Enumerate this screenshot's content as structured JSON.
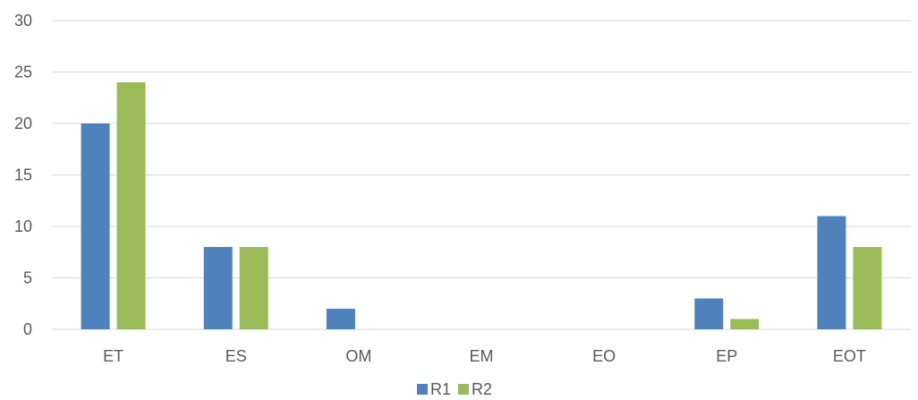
{
  "chart_data": {
    "type": "bar",
    "categories": [
      "ET",
      "ES",
      "OM",
      "EM",
      "EO",
      "EP",
      "EOT"
    ],
    "series": [
      {
        "name": "R1",
        "values": [
          20,
          8,
          2,
          0,
          0,
          3,
          11
        ],
        "color": "#4f81bd"
      },
      {
        "name": "R2",
        "values": [
          24,
          8,
          0,
          0,
          0,
          1,
          8
        ],
        "color": "#9bbb59"
      }
    ],
    "ylim": [
      0,
      30
    ],
    "yticks": [
      0,
      5,
      10,
      15,
      20,
      25,
      30
    ],
    "grid": true,
    "legend": "bottom-center",
    "gridline_color": "#d9d9d9",
    "text_color": "#595959"
  }
}
